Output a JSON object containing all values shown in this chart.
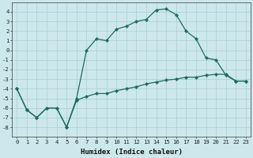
{
  "xlabel": "Humidex (Indice chaleur)",
  "x_values": [
    0,
    1,
    2,
    3,
    4,
    5,
    6,
    7,
    8,
    9,
    10,
    11,
    12,
    13,
    14,
    15,
    16,
    17,
    18,
    19,
    20,
    21,
    22,
    23
  ],
  "line1_y": [
    -4,
    -6.2,
    -7,
    -6,
    -6,
    -8,
    -5.2,
    -4.8,
    -4.5,
    -4.5,
    -4.2,
    -4.0,
    -3.8,
    -3.5,
    -3.3,
    -3.1,
    -3.0,
    -2.8,
    -2.8,
    -2.6,
    -2.5,
    -2.5,
    -3.2,
    -3.2
  ],
  "line2_y": [
    -4,
    -6.2,
    -7,
    -6,
    -6,
    -8,
    -5,
    0.0,
    1.2,
    1.0,
    2.2,
    2.5,
    3.0,
    3.2,
    4.2,
    4.3,
    3.7,
    2.0,
    1.2,
    -0.8,
    -1.0,
    -2.6,
    -3.2,
    -3.2
  ],
  "line_color": "#1e6b5e",
  "bg_color": "#cce8ec",
  "grid_color": "#aacdd4",
  "ylim": [
    -9,
    5
  ],
  "xlim": [
    -0.5,
    23.5
  ],
  "yticks": [
    -8,
    -7,
    -6,
    -5,
    -4,
    -3,
    -2,
    -1,
    0,
    1,
    2,
    3,
    4
  ],
  "xticks": [
    0,
    1,
    2,
    3,
    4,
    5,
    6,
    7,
    8,
    9,
    10,
    11,
    12,
    13,
    14,
    15,
    16,
    17,
    18,
    19,
    20,
    21,
    22,
    23
  ],
  "tick_fontsize": 5.2,
  "label_fontsize": 6.5,
  "marker_size": 2.2,
  "linewidth": 0.9
}
